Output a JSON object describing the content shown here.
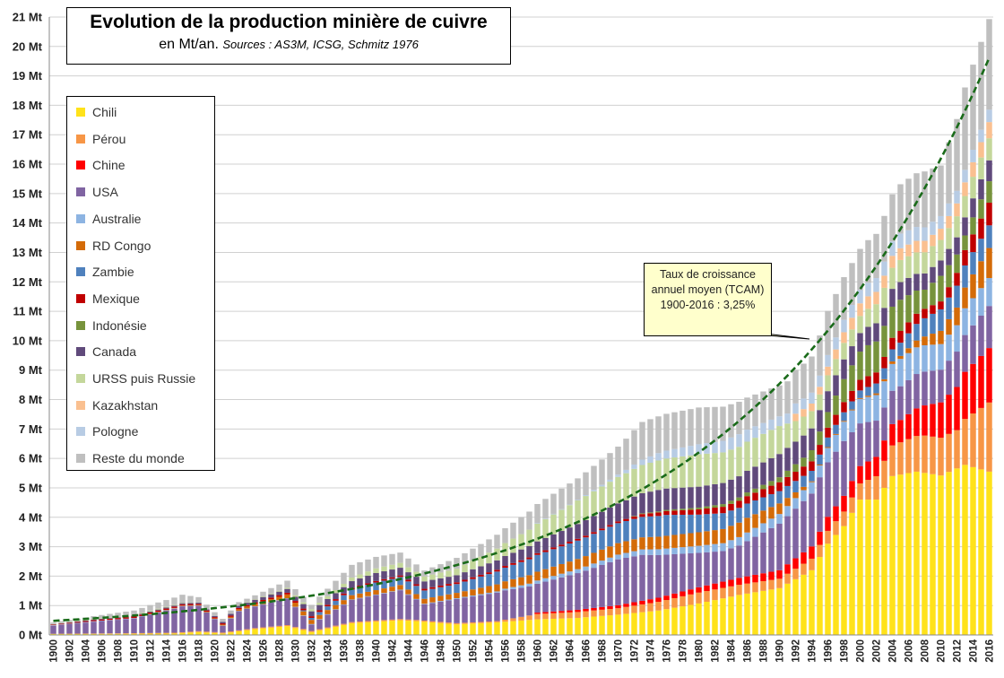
{
  "chart_data": {
    "type": "bar",
    "stacked": true,
    "title": "Evolution de la production minière de cuivre",
    "subtitle": "en Mt/an.",
    "sources": "Sources : AS3M, ICSG, Schmitz 1976",
    "ylim": [
      0,
      21
    ],
    "y_ticks": [
      "0 Mt",
      "1 Mt",
      "2 Mt",
      "3 Mt",
      "4 Mt",
      "5 Mt",
      "6 Mt",
      "7 Mt",
      "8 Mt",
      "9 Mt",
      "10 Mt",
      "11 Mt",
      "12 Mt",
      "13 Mt",
      "14 Mt",
      "15 Mt",
      "16 Mt",
      "17 Mt",
      "18 Mt",
      "19 Mt",
      "20 Mt",
      "21 Mt"
    ],
    "x_ticks": [
      "1900",
      "1902",
      "1904",
      "1906",
      "1908",
      "1910",
      "1912",
      "1914",
      "1916",
      "1918",
      "1920",
      "1922",
      "1924",
      "1926",
      "1928",
      "1930",
      "1932",
      "1934",
      "1936",
      "1938",
      "1940",
      "1942",
      "1944",
      "1946",
      "1948",
      "1950",
      "1952",
      "1954",
      "1956",
      "1958",
      "1960",
      "1962",
      "1964",
      "1966",
      "1968",
      "1970",
      "1972",
      "1974",
      "1976",
      "1978",
      "1980",
      "1982",
      "1984",
      "1986",
      "1988",
      "1990",
      "1992",
      "1994",
      "1996",
      "1998",
      "2000",
      "2002",
      "2004",
      "2006",
      "2008",
      "2010",
      "2012",
      "2014",
      "2016"
    ],
    "grid": true,
    "legend_position": "left",
    "annotation": "Taux de croissance annuel moyen (TCAM) 1900-2016 : 3,25%",
    "trend_line": {
      "type": "exponential",
      "rate": 0.0325,
      "start_value": 0.48
    },
    "series": [
      {
        "name": "Chili",
        "color": "#ffe21a",
        "keypoints": [
          [
            1900,
            0.03
          ],
          [
            1910,
            0.04
          ],
          [
            1915,
            0.05
          ],
          [
            1918,
            0.1
          ],
          [
            1921,
            0.05
          ],
          [
            1925,
            0.2
          ],
          [
            1929,
            0.3
          ],
          [
            1932,
            0.1
          ],
          [
            1937,
            0.4
          ],
          [
            1943,
            0.5
          ],
          [
            1945,
            0.47
          ],
          [
            1950,
            0.36
          ],
          [
            1955,
            0.43
          ],
          [
            1960,
            0.53
          ],
          [
            1965,
            0.58
          ],
          [
            1970,
            0.69
          ],
          [
            1975,
            0.83
          ],
          [
            1980,
            1.07
          ],
          [
            1985,
            1.36
          ],
          [
            1990,
            1.59
          ],
          [
            1994,
            2.2
          ],
          [
            1996,
            3.1
          ],
          [
            1998,
            3.7
          ],
          [
            2000,
            4.6
          ],
          [
            2002,
            4.6
          ],
          [
            2004,
            5.4
          ],
          [
            2007,
            5.55
          ],
          [
            2010,
            5.42
          ],
          [
            2013,
            5.78
          ],
          [
            2016,
            5.55
          ]
        ]
      },
      {
        "name": "Pérou",
        "color": "#f79646",
        "keypoints": [
          [
            1900,
            0.01
          ],
          [
            1920,
            0.03
          ],
          [
            1940,
            0.04
          ],
          [
            1955,
            0.04
          ],
          [
            1960,
            0.18
          ],
          [
            1970,
            0.22
          ],
          [
            1980,
            0.37
          ],
          [
            1990,
            0.32
          ],
          [
            1995,
            0.41
          ],
          [
            2000,
            0.55
          ],
          [
            2004,
            1.04
          ],
          [
            2008,
            1.27
          ],
          [
            2012,
            1.3
          ],
          [
            2016,
            2.35
          ]
        ]
      },
      {
        "name": "Chine",
        "color": "#ff0000",
        "keypoints": [
          [
            1900,
            0.0
          ],
          [
            1959,
            0.0
          ],
          [
            1960,
            0.05
          ],
          [
            1970,
            0.1
          ],
          [
            1980,
            0.18
          ],
          [
            1990,
            0.29
          ],
          [
            1995,
            0.45
          ],
          [
            2000,
            0.59
          ],
          [
            2005,
            0.76
          ],
          [
            2010,
            1.2
          ],
          [
            2013,
            1.6
          ],
          [
            2016,
            1.85
          ]
        ]
      },
      {
        "name": "USA",
        "color": "#8064a2",
        "keypoints": [
          [
            1900,
            0.27
          ],
          [
            1905,
            0.4
          ],
          [
            1910,
            0.5
          ],
          [
            1916,
            0.88
          ],
          [
            1918,
            0.86
          ],
          [
            1921,
            0.23
          ],
          [
            1923,
            0.65
          ],
          [
            1929,
            0.9
          ],
          [
            1932,
            0.22
          ],
          [
            1937,
            0.75
          ],
          [
            1943,
            0.98
          ],
          [
            1946,
            0.55
          ],
          [
            1950,
            0.82
          ],
          [
            1956,
            1.0
          ],
          [
            1960,
            0.98
          ],
          [
            1966,
            1.3
          ],
          [
            1970,
            1.56
          ],
          [
            1973,
            1.56
          ],
          [
            1980,
            1.17
          ],
          [
            1983,
            1.04
          ],
          [
            1985,
            1.1
          ],
          [
            1990,
            1.58
          ],
          [
            1995,
            1.85
          ],
          [
            1998,
            1.86
          ],
          [
            2000,
            1.45
          ],
          [
            2003,
            1.12
          ],
          [
            2007,
            1.17
          ],
          [
            2010,
            1.11
          ],
          [
            2013,
            1.25
          ],
          [
            2016,
            1.43
          ]
        ]
      },
      {
        "name": "Australie",
        "color": "#8db4e2",
        "keypoints": [
          [
            1900,
            0.02
          ],
          [
            1920,
            0.01
          ],
          [
            1945,
            0.02
          ],
          [
            1955,
            0.04
          ],
          [
            1960,
            0.11
          ],
          [
            1970,
            0.16
          ],
          [
            1980,
            0.24
          ],
          [
            1990,
            0.33
          ],
          [
            1995,
            0.4
          ],
          [
            2000,
            0.83
          ],
          [
            2005,
            0.93
          ],
          [
            2010,
            0.87
          ],
          [
            2016,
            0.95
          ]
        ]
      },
      {
        "name": "RD Congo",
        "color": "#d46b08",
        "keypoints": [
          [
            1900,
            0.0
          ],
          [
            1911,
            0.0
          ],
          [
            1912,
            0.01
          ],
          [
            1920,
            0.02
          ],
          [
            1930,
            0.14
          ],
          [
            1940,
            0.15
          ],
          [
            1950,
            0.18
          ],
          [
            1960,
            0.3
          ],
          [
            1970,
            0.39
          ],
          [
            1980,
            0.46
          ],
          [
            1986,
            0.5
          ],
          [
            1990,
            0.36
          ],
          [
            1994,
            0.03
          ],
          [
            2000,
            0.03
          ],
          [
            2005,
            0.1
          ],
          [
            2008,
            0.3
          ],
          [
            2012,
            0.6
          ],
          [
            2016,
            1.02
          ]
        ]
      },
      {
        "name": "Zambie",
        "color": "#4f81bd",
        "keypoints": [
          [
            1900,
            0.0
          ],
          [
            1930,
            0.0
          ],
          [
            1933,
            0.1
          ],
          [
            1940,
            0.26
          ],
          [
            1950,
            0.3
          ],
          [
            1960,
            0.57
          ],
          [
            1970,
            0.68
          ],
          [
            1976,
            0.71
          ],
          [
            1980,
            0.6
          ],
          [
            1985,
            0.5
          ],
          [
            1990,
            0.42
          ],
          [
            1995,
            0.34
          ],
          [
            2000,
            0.26
          ],
          [
            2005,
            0.45
          ],
          [
            2010,
            0.73
          ],
          [
            2016,
            0.77
          ]
        ]
      },
      {
        "name": "Mexique",
        "color": "#c00000",
        "keypoints": [
          [
            1900,
            0.02
          ],
          [
            1910,
            0.05
          ],
          [
            1920,
            0.04
          ],
          [
            1930,
            0.06
          ],
          [
            1940,
            0.05
          ],
          [
            1950,
            0.06
          ],
          [
            1960,
            0.06
          ],
          [
            1970,
            0.06
          ],
          [
            1980,
            0.18
          ],
          [
            1990,
            0.3
          ],
          [
            1995,
            0.33
          ],
          [
            2000,
            0.36
          ],
          [
            2005,
            0.4
          ],
          [
            2010,
            0.27
          ],
          [
            2016,
            0.77
          ]
        ]
      },
      {
        "name": "Indonésie",
        "color": "#77933c",
        "keypoints": [
          [
            1900,
            0.0
          ],
          [
            1971,
            0.0
          ],
          [
            1972,
            0.02
          ],
          [
            1980,
            0.06
          ],
          [
            1990,
            0.17
          ],
          [
            1993,
            0.3
          ],
          [
            1996,
            0.53
          ],
          [
            1998,
            0.78
          ],
          [
            2001,
            1.05
          ],
          [
            2005,
            1.06
          ],
          [
            2008,
            0.65
          ],
          [
            2010,
            0.87
          ],
          [
            2013,
            0.5
          ],
          [
            2016,
            0.73
          ]
        ]
      },
      {
        "name": "Canada",
        "color": "#604a7b",
        "keypoints": [
          [
            1900,
            0.01
          ],
          [
            1910,
            0.03
          ],
          [
            1920,
            0.04
          ],
          [
            1930,
            0.14
          ],
          [
            1940,
            0.27
          ],
          [
            1950,
            0.24
          ],
          [
            1960,
            0.4
          ],
          [
            1970,
            0.61
          ],
          [
            1975,
            0.73
          ],
          [
            1980,
            0.71
          ],
          [
            1985,
            0.72
          ],
          [
            1990,
            0.79
          ],
          [
            1995,
            0.73
          ],
          [
            2000,
            0.63
          ],
          [
            2005,
            0.6
          ],
          [
            2010,
            0.52
          ],
          [
            2016,
            0.71
          ]
        ]
      },
      {
        "name": "URSS puis Russie",
        "color": "#c4d79b",
        "keypoints": [
          [
            1900,
            0.01
          ],
          [
            1913,
            0.03
          ],
          [
            1920,
            0.0
          ],
          [
            1928,
            0.03
          ],
          [
            1935,
            0.1
          ],
          [
            1940,
            0.16
          ],
          [
            1946,
            0.17
          ],
          [
            1950,
            0.22
          ],
          [
            1955,
            0.4
          ],
          [
            1960,
            0.6
          ],
          [
            1965,
            0.8
          ],
          [
            1970,
            0.9
          ],
          [
            1975,
            1.0
          ],
          [
            1980,
            1.1
          ],
          [
            1985,
            1.0
          ],
          [
            1990,
            0.95
          ],
          [
            1992,
            0.7
          ],
          [
            1995,
            0.53
          ],
          [
            2000,
            0.58
          ],
          [
            2005,
            0.75
          ],
          [
            2010,
            0.7
          ],
          [
            2016,
            0.75
          ]
        ]
      },
      {
        "name": "Kazakhstan",
        "color": "#fac090",
        "keypoints": [
          [
            1900,
            0.0
          ],
          [
            1991,
            0.0
          ],
          [
            1992,
            0.25
          ],
          [
            1995,
            0.26
          ],
          [
            2000,
            0.43
          ],
          [
            2005,
            0.4
          ],
          [
            2010,
            0.38
          ],
          [
            2016,
            0.55
          ]
        ]
      },
      {
        "name": "Pologne",
        "color": "#b8cce4",
        "keypoints": [
          [
            1900,
            0.0
          ],
          [
            1959,
            0.0
          ],
          [
            1960,
            0.02
          ],
          [
            1965,
            0.02
          ],
          [
            1970,
            0.08
          ],
          [
            1975,
            0.25
          ],
          [
            1980,
            0.34
          ],
          [
            1985,
            0.43
          ],
          [
            1990,
            0.33
          ],
          [
            1995,
            0.38
          ],
          [
            2000,
            0.45
          ],
          [
            2005,
            0.5
          ],
          [
            2010,
            0.43
          ],
          [
            2016,
            0.42
          ]
        ]
      },
      {
        "name": "Reste du monde",
        "color": "#bfbfbf",
        "keypoints": [
          [
            1900,
            0.05
          ],
          [
            1910,
            0.15
          ],
          [
            1916,
            0.27
          ],
          [
            1918,
            0.18
          ],
          [
            1921,
            0.1
          ],
          [
            1925,
            0.13
          ],
          [
            1929,
            0.24
          ],
          [
            1932,
            0.15
          ],
          [
            1937,
            0.43
          ],
          [
            1943,
            0.35
          ],
          [
            1946,
            0.2
          ],
          [
            1950,
            0.37
          ],
          [
            1955,
            0.47
          ],
          [
            1960,
            0.65
          ],
          [
            1965,
            0.73
          ],
          [
            1970,
            0.95
          ],
          [
            1973,
            1.28
          ],
          [
            1975,
            1.25
          ],
          [
            1980,
            1.25
          ],
          [
            1985,
            1.1
          ],
          [
            1990,
            1.05
          ],
          [
            1994,
            1.23
          ],
          [
            1996,
            1.5
          ],
          [
            2000,
            1.4
          ],
          [
            2004,
            1.6
          ],
          [
            2008,
            1.9
          ],
          [
            2010,
            1.72
          ],
          [
            2013,
            2.8
          ],
          [
            2016,
            3.08
          ]
        ]
      }
    ]
  }
}
